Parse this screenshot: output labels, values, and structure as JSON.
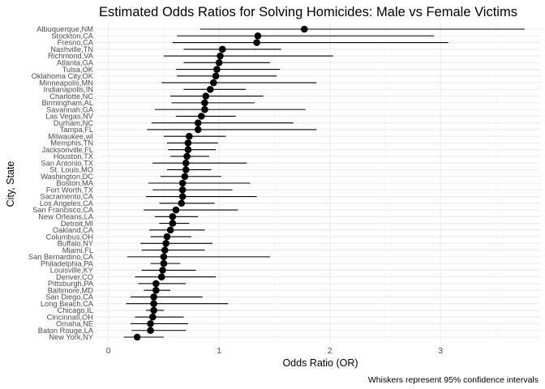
{
  "chart_data": {
    "type": "scatter",
    "title": "Estimated Odds Ratios for Solving Homicides: Male vs Female Victims",
    "xlabel": "Odds Ratio (OR)",
    "ylabel": "City, State",
    "caption": "Whiskers represent 95% confidence intervals",
    "xlim": [
      -0.1,
      3.9
    ],
    "xticks": [
      0,
      1,
      2,
      3
    ],
    "grid": true,
    "legend": "none",
    "point_color": "#000000",
    "series": [
      {
        "points": [
          {
            "city": "Albuquerque,NM",
            "or": 1.77,
            "lo": 0.83,
            "hi": 3.76
          },
          {
            "city": "Stockton,CA",
            "or": 1.35,
            "lo": 0.62,
            "hi": 2.94
          },
          {
            "city": "Fresno,CA",
            "or": 1.34,
            "lo": 0.58,
            "hi": 3.07
          },
          {
            "city": "Nashville,TN",
            "or": 1.03,
            "lo": 0.68,
            "hi": 1.56
          },
          {
            "city": "Richmond,VA",
            "or": 1.01,
            "lo": 0.5,
            "hi": 2.03
          },
          {
            "city": "Atlanta,GA",
            "or": 1.0,
            "lo": 0.68,
            "hi": 1.46
          },
          {
            "city": "Tulsa,OK",
            "or": 0.98,
            "lo": 0.61,
            "hi": 1.55
          },
          {
            "city": "Oklahoma City,OK",
            "or": 0.97,
            "lo": 0.62,
            "hi": 1.52
          },
          {
            "city": "Minneapolis,MN",
            "or": 0.95,
            "lo": 0.48,
            "hi": 1.88
          },
          {
            "city": "Indianapolis,IN",
            "or": 0.92,
            "lo": 0.68,
            "hi": 1.24
          },
          {
            "city": "Charlotte,NC",
            "or": 0.88,
            "lo": 0.56,
            "hi": 1.4
          },
          {
            "city": "Birmingham,AL",
            "or": 0.87,
            "lo": 0.57,
            "hi": 1.32
          },
          {
            "city": "Savannah,GA",
            "or": 0.87,
            "lo": 0.42,
            "hi": 1.78
          },
          {
            "city": "Las Vegas,NV",
            "or": 0.84,
            "lo": 0.61,
            "hi": 1.15
          },
          {
            "city": "Durham,NC",
            "or": 0.81,
            "lo": 0.39,
            "hi": 1.67
          },
          {
            "city": "Tampa,FL",
            "or": 0.81,
            "lo": 0.35,
            "hi": 1.88
          },
          {
            "city": "Milwaukee,wI",
            "or": 0.73,
            "lo": 0.5,
            "hi": 1.06
          },
          {
            "city": "Memphis,TN",
            "or": 0.72,
            "lo": 0.53,
            "hi": 0.99
          },
          {
            "city": "Jacksonville,FL",
            "or": 0.72,
            "lo": 0.54,
            "hi": 0.97
          },
          {
            "city": "Houston,TX",
            "or": 0.71,
            "lo": 0.56,
            "hi": 0.91
          },
          {
            "city": "San Antonio,TX",
            "or": 0.7,
            "lo": 0.4,
            "hi": 1.25
          },
          {
            "city": "St. Louis,MO",
            "or": 0.7,
            "lo": 0.53,
            "hi": 0.93
          },
          {
            "city": "Washington,DC",
            "or": 0.69,
            "lo": 0.47,
            "hi": 1.02
          },
          {
            "city": "Boston,MA",
            "or": 0.67,
            "lo": 0.36,
            "hi": 1.28
          },
          {
            "city": "Fort Worth,TX",
            "or": 0.67,
            "lo": 0.4,
            "hi": 1.12
          },
          {
            "city": "Sacramento,CA",
            "or": 0.67,
            "lo": 0.34,
            "hi": 1.34
          },
          {
            "city": "Los Angeles,CA",
            "or": 0.66,
            "lo": 0.46,
            "hi": 0.96
          },
          {
            "city": "San Francisco,CA",
            "or": 0.61,
            "lo": 0.32,
            "hi": 1.17
          },
          {
            "city": "New Orleans,LA",
            "or": 0.58,
            "lo": 0.42,
            "hi": 0.81
          },
          {
            "city": "Detroit,MI",
            "or": 0.58,
            "lo": 0.46,
            "hi": 0.73
          },
          {
            "city": "Oakland,CA",
            "or": 0.56,
            "lo": 0.37,
            "hi": 0.87
          },
          {
            "city": "Columbus,OH",
            "or": 0.53,
            "lo": 0.38,
            "hi": 0.75
          },
          {
            "city": "Buffalo,NY",
            "or": 0.52,
            "lo": 0.29,
            "hi": 0.94
          },
          {
            "city": "Miami,FL",
            "or": 0.51,
            "lo": 0.3,
            "hi": 0.87
          },
          {
            "city": "San Bernardino,CA",
            "or": 0.5,
            "lo": 0.17,
            "hi": 1.46
          },
          {
            "city": "Philadelphia,PA",
            "or": 0.5,
            "lo": 0.38,
            "hi": 0.65
          },
          {
            "city": "Louisville,KY",
            "or": 0.49,
            "lo": 0.3,
            "hi": 0.79
          },
          {
            "city": "Denver,CO",
            "or": 0.48,
            "lo": 0.24,
            "hi": 0.97
          },
          {
            "city": "Pittsburgh,PA",
            "or": 0.43,
            "lo": 0.27,
            "hi": 0.7
          },
          {
            "city": "Baltimore,MD",
            "or": 0.43,
            "lo": 0.32,
            "hi": 0.56
          },
          {
            "city": "San Diego,CA",
            "or": 0.41,
            "lo": 0.2,
            "hi": 0.85
          },
          {
            "city": "Long Beach,CA",
            "or": 0.41,
            "lo": 0.16,
            "hi": 1.08
          },
          {
            "city": "Chicago,IL",
            "or": 0.41,
            "lo": 0.34,
            "hi": 0.5
          },
          {
            "city": "Cincinnati,OH",
            "or": 0.4,
            "lo": 0.24,
            "hi": 0.68
          },
          {
            "city": "Omaha,NE",
            "or": 0.38,
            "lo": 0.2,
            "hi": 0.72
          },
          {
            "city": "Baton Rouge,LA",
            "or": 0.38,
            "lo": 0.21,
            "hi": 0.7
          },
          {
            "city": "New York,NY",
            "or": 0.26,
            "lo": 0.14,
            "hi": 0.5
          }
        ]
      }
    ]
  }
}
